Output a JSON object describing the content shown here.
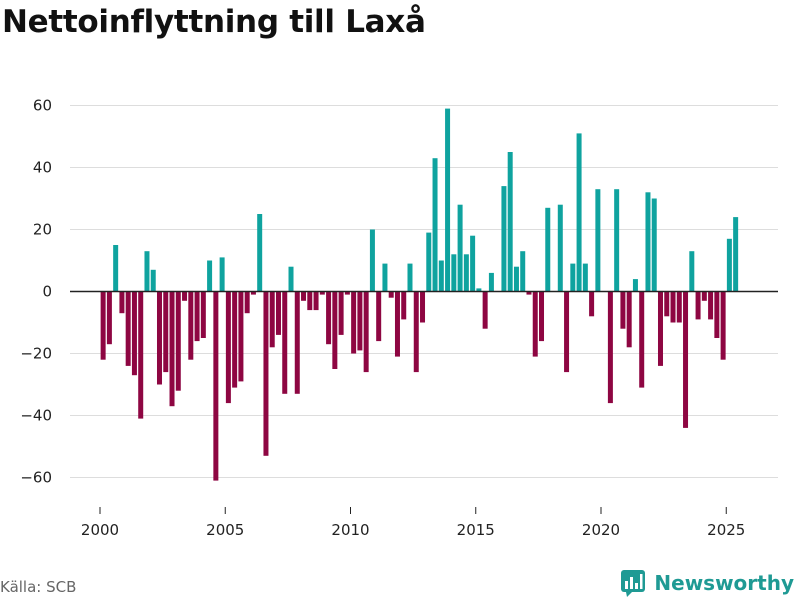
{
  "title": "Nettoinflyttning till Laxå",
  "source": "Källa: SCB",
  "brand": "Newsworthy",
  "colors": {
    "positive": "#0fa39f",
    "negative": "#8e0642",
    "grid": "#dddddd",
    "axis": "#222222"
  },
  "chart_data": {
    "type": "bar",
    "title": "Nettoinflyttning till Laxå",
    "xlabel": "",
    "ylabel": "",
    "frequency": "quarterly",
    "start": "2000-Q1",
    "ylim": [
      -68,
      63
    ],
    "yticks": [
      60,
      40,
      20,
      0,
      -20,
      -40,
      -60
    ],
    "yticklabels": [
      "60",
      "40",
      "20",
      "0",
      "−20",
      "−40",
      "−60"
    ],
    "xticks": [
      2000,
      2005,
      2010,
      2015,
      2020,
      2025
    ],
    "xticklabels": [
      "2000",
      "2005",
      "2010",
      "2015",
      "2020",
      "2025"
    ],
    "values": [
      -22,
      -17,
      15,
      -7,
      -24,
      -27,
      -41,
      13,
      7,
      -30,
      -26,
      -37,
      -32,
      -3,
      -22,
      -16,
      -15,
      10,
      -61,
      11,
      -36,
      -31,
      -29,
      -7,
      -1,
      25,
      -53,
      -18,
      -14,
      -33,
      8,
      -33,
      -3,
      -6,
      -6,
      -1,
      -17,
      -25,
      -14,
      -1,
      -20,
      -19,
      -26,
      20,
      -16,
      9,
      -2,
      -21,
      -9,
      9,
      -26,
      -10,
      19,
      43,
      10,
      59,
      12,
      28,
      12,
      18,
      1,
      -12,
      6,
      0,
      34,
      45,
      8,
      13,
      -1,
      -21,
      -16,
      27,
      0,
      28,
      -26,
      9,
      51,
      9,
      -8,
      33,
      0,
      -36,
      33,
      -12,
      -18,
      4,
      -31,
      32,
      30,
      -24,
      -8,
      -10,
      -10,
      -44,
      13,
      -9,
      -3,
      -9,
      -15,
      -22,
      17,
      24
    ]
  }
}
